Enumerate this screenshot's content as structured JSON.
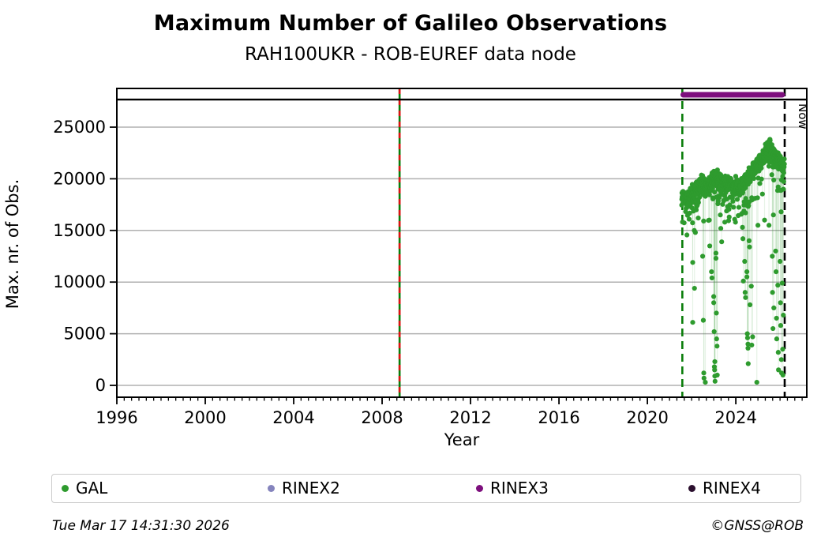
{
  "header": {
    "title": "Maximum Number of Galileo Observations",
    "subtitle": "RAH100UKR - ROB-EUREF data node"
  },
  "axes": {
    "x_label": "Year",
    "y_label": "Max. nr. of Obs."
  },
  "legend": {
    "items": [
      {
        "label": "GAL",
        "color": "#2e9b2e"
      },
      {
        "label": "RINEX2",
        "color": "#8584bd"
      },
      {
        "label": "RINEX3",
        "color": "#7d0f7d"
      },
      {
        "label": "RINEX4",
        "color": "#2b0f2e"
      }
    ]
  },
  "footer": {
    "timestamp": "Tue Mar 17 14:31:30 2026",
    "credit": "©GNSS@ROB"
  },
  "chart_data": {
    "type": "scatter",
    "title": "Maximum Number of Galileo Observations",
    "subtitle": "RAH100UKR - ROB-EUREF data node",
    "xlabel": "Year",
    "ylabel": "Max. nr. of Obs.",
    "x_range": [
      1996,
      2027.21
    ],
    "y_range": [
      -1147,
      28746
    ],
    "x_major_ticks": [
      1996,
      2000,
      2004,
      2008,
      2012,
      2016,
      2020,
      2024
    ],
    "x_minor_step_years": 0.3333333,
    "y_ticks": [
      0,
      5000,
      10000,
      15000,
      20000,
      25000
    ],
    "grid": true,
    "grid_color": "#b0b0b0",
    "frame_color": "#000000",
    "annotations": {
      "event_line": {
        "x": 2008.79,
        "solid_color": "#0a7d0a",
        "dash_color": "#dd1111",
        "style": "green-solid-with-red-dashes"
      },
      "start_line": {
        "x": 2021.58,
        "color": "#0a7d0a",
        "style": "dashed"
      },
      "now_line": {
        "x": 2026.21,
        "color": "#000000",
        "style": "dashed",
        "label": "Now"
      },
      "top_rule_y": 27673,
      "rinex3_bar": {
        "x_from": 2021.62,
        "x_to": 2026.1,
        "y": 28131,
        "color": "#7d0f7d",
        "thickness": 7
      }
    },
    "series": [
      {
        "name": "GAL",
        "color": "#2e9b2e",
        "marker_radius": 3.1,
        "connector_color": "rgba(46,155,46,0.12)",
        "band": {
          "x_start": 2021.55,
          "x_end": 2026.2,
          "anchors": [
            [
              2021.55,
              18200
            ],
            [
              2021.9,
              18300
            ],
            [
              2022.2,
              18900
            ],
            [
              2022.45,
              19600
            ],
            [
              2022.6,
              19100
            ],
            [
              2022.8,
              19300
            ],
            [
              2023.05,
              20300
            ],
            [
              2023.25,
              19600
            ],
            [
              2023.5,
              19300
            ],
            [
              2023.75,
              19600
            ],
            [
              2024.0,
              19400
            ],
            [
              2024.25,
              19200
            ],
            [
              2024.5,
              19900
            ],
            [
              2024.8,
              20800
            ],
            [
              2025.1,
              21700
            ],
            [
              2025.35,
              22600
            ],
            [
              2025.55,
              23000
            ],
            [
              2025.75,
              22300
            ],
            [
              2025.95,
              21800
            ],
            [
              2026.2,
              21000
            ]
          ],
          "halfwidth": 1050,
          "points_per_year": 165,
          "dropout_chance": 0.16,
          "dropout_max": 2900,
          "seed": 20260317
        },
        "outliers": [
          [
            2022.05,
            11900
          ],
          [
            2022.05,
            6100
          ],
          [
            2022.12,
            15000
          ],
          [
            2022.13,
            9400
          ],
          [
            2022.17,
            14800
          ],
          [
            2022.3,
            16200
          ],
          [
            2022.5,
            12500
          ],
          [
            2022.53,
            6300
          ],
          [
            2022.55,
            1200
          ],
          [
            2022.56,
            700
          ],
          [
            2022.62,
            300
          ],
          [
            2022.8,
            16000
          ],
          [
            2022.82,
            13500
          ],
          [
            2022.9,
            11000
          ],
          [
            2022.92,
            10400
          ],
          [
            2023.0,
            8600
          ],
          [
            2023.0,
            8000
          ],
          [
            2023.02,
            5200
          ],
          [
            2023.03,
            1800
          ],
          [
            2023.04,
            1500
          ],
          [
            2023.05,
            900
          ],
          [
            2023.05,
            2300
          ],
          [
            2023.06,
            400
          ],
          [
            2023.1,
            12800
          ],
          [
            2023.1,
            12300
          ],
          [
            2023.12,
            7000
          ],
          [
            2023.13,
            4500
          ],
          [
            2023.15,
            3800
          ],
          [
            2023.16,
            1000
          ],
          [
            2023.3,
            16500
          ],
          [
            2023.32,
            15200
          ],
          [
            2023.36,
            13900
          ],
          [
            2023.5,
            15800
          ],
          [
            2023.7,
            16300
          ],
          [
            2024.3,
            15300
          ],
          [
            2024.32,
            14200
          ],
          [
            2024.34,
            10100
          ],
          [
            2024.4,
            12000
          ],
          [
            2024.42,
            9000
          ],
          [
            2024.44,
            8500
          ],
          [
            2024.5,
            11000
          ],
          [
            2024.5,
            10500
          ],
          [
            2024.52,
            5000
          ],
          [
            2024.53,
            4600
          ],
          [
            2024.55,
            4000
          ],
          [
            2024.55,
            3600
          ],
          [
            2024.56,
            2100
          ],
          [
            2024.6,
            14000
          ],
          [
            2024.62,
            13400
          ],
          [
            2024.64,
            7800
          ],
          [
            2024.7,
            9600
          ],
          [
            2024.72,
            3900
          ],
          [
            2024.76,
            4700
          ],
          [
            2024.95,
            300
          ],
          [
            2025.0,
            15500
          ],
          [
            2025.3,
            16000
          ],
          [
            2025.5,
            15500
          ],
          [
            2025.65,
            12500
          ],
          [
            2025.66,
            9000
          ],
          [
            2025.68,
            5500
          ],
          [
            2025.7,
            16500
          ],
          [
            2025.72,
            7500
          ],
          [
            2025.8,
            13000
          ],
          [
            2025.82,
            11000
          ],
          [
            2025.84,
            6500
          ],
          [
            2025.85,
            4500
          ],
          [
            2025.9,
            9700
          ],
          [
            2025.92,
            3200
          ],
          [
            2025.93,
            1500
          ],
          [
            2026.0,
            12000
          ],
          [
            2026.02,
            8000
          ],
          [
            2026.03,
            5800
          ],
          [
            2026.05,
            16800
          ],
          [
            2026.06,
            2500
          ],
          [
            2026.07,
            1200
          ],
          [
            2026.1,
            9900
          ],
          [
            2026.12,
            3500
          ],
          [
            2026.13,
            1000
          ],
          [
            2026.15,
            6800
          ]
        ]
      },
      {
        "name": "RINEX2",
        "color": "#8584bd",
        "points": []
      },
      {
        "name": "RINEX3",
        "color": "#7d0f7d",
        "availability_bar": [
          2021.62,
          2026.1
        ]
      },
      {
        "name": "RINEX4",
        "color": "#2b0f2e",
        "points": []
      }
    ],
    "legend_position": "bottom",
    "legend_entries": [
      "GAL",
      "RINEX2",
      "RINEX3",
      "RINEX4"
    ]
  }
}
